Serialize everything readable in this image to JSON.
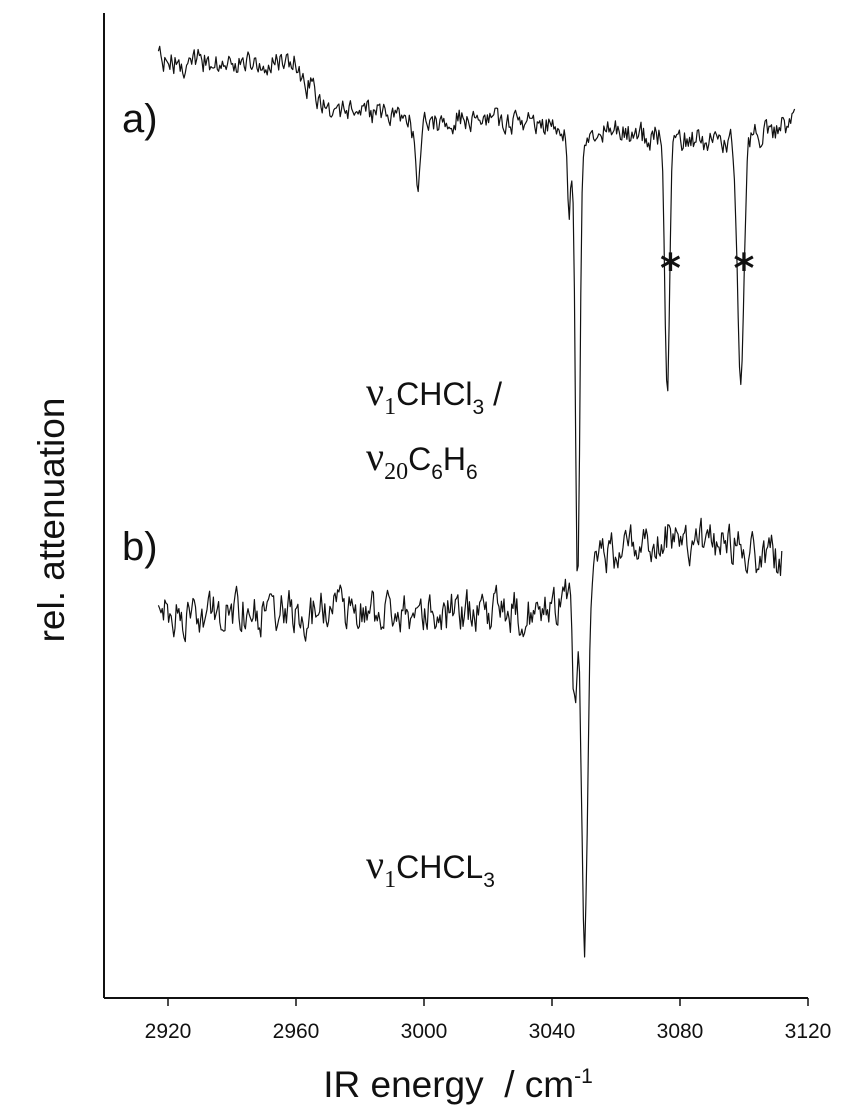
{
  "chart_data": {
    "type": "line",
    "xlabel": "IR energy  / cm",
    "xlabel_sup": "-1",
    "ylabel": "rel. attenuation",
    "xlim": [
      2900,
      3120
    ],
    "xticks": [
      2920,
      2960,
      3000,
      3040,
      3080,
      3120
    ],
    "grid": false,
    "legend": "none",
    "panels": [
      {
        "label": "a)",
        "x_range": [
          2917,
          3116
        ],
        "baseline": [
          [
            2917,
            0.05
          ],
          [
            2960,
            0.05
          ],
          [
            2962,
            0.1
          ],
          [
            2970,
            0.18
          ],
          [
            2990,
            0.22
          ],
          [
            3020,
            0.22
          ],
          [
            3050,
            0.25
          ],
          [
            3080,
            0.28
          ],
          [
            3100,
            0.28
          ],
          [
            3116,
            0.22
          ]
        ],
        "noise": 0.06,
        "peaks": [
          {
            "x": 2998,
            "depth": 0.18,
            "width": 1.2
          },
          {
            "x": 3045.3,
            "depth": 0.25,
            "width": 0.8
          },
          {
            "x": 3048,
            "depth": 1.35,
            "width": 1.0
          },
          {
            "x": 3076,
            "depth": 0.75,
            "width": 1.0
          },
          {
            "x": 3099,
            "depth": 0.7,
            "width": 1.4
          }
        ],
        "stars": [
          3077,
          3100
        ],
        "annotation": {
          "prefix": "ν",
          "sub1": "1",
          "mid": "CHCl",
          "sub2": "3",
          "suffix": " /",
          "line2_prefix": "ν",
          "line2_sub": "20",
          "line2_mid": "C",
          "line2_sub2": "6",
          "line2_mid2": "H",
          "line2_sub3": "6"
        }
      },
      {
        "label": "b)",
        "x_range": [
          2917,
          3112
        ],
        "baseline": [
          [
            2917,
            0.0
          ],
          [
            3040,
            0.0
          ],
          [
            3060,
            -0.18
          ],
          [
            3080,
            -0.22
          ],
          [
            3112,
            -0.15
          ]
        ],
        "noise": 0.1,
        "peaks": [
          {
            "x": 3050.2,
            "depth": 1.05,
            "width": 1.4
          },
          {
            "x": 3047,
            "depth": 0.35,
            "width": 1.0
          }
        ],
        "annotation": {
          "prefix": "ν",
          "sub1": "1",
          "mid": "CHCL",
          "sub2": "3"
        }
      }
    ]
  }
}
